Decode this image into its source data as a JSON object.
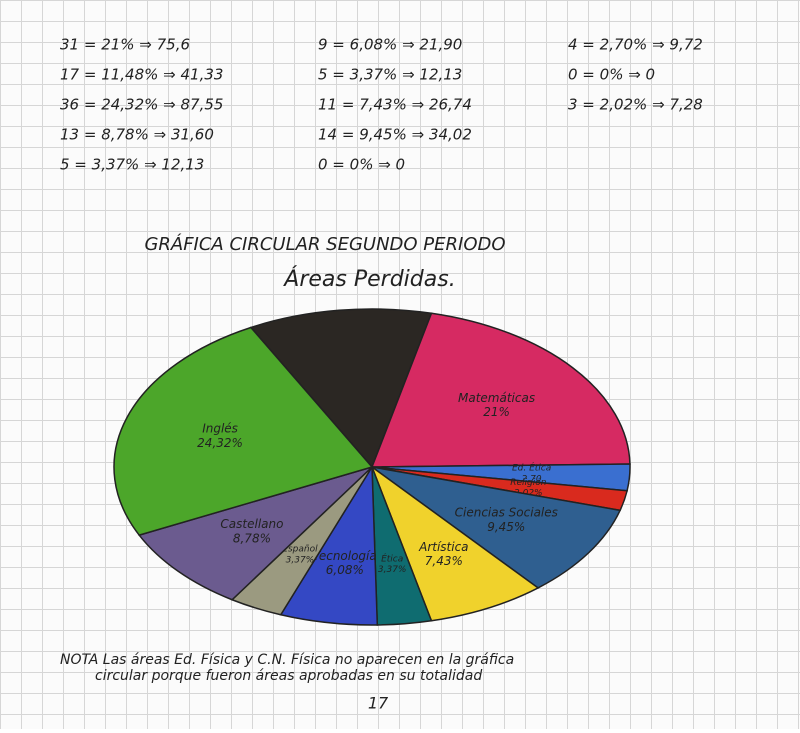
{
  "calculations": [
    [
      "31 = 21% ⇒ 75,6",
      "9 = 6,08% ⇒ 21,90",
      "4 = 2,70% ⇒ 9,72"
    ],
    [
      "17 = 11,48% ⇒ 41,33",
      "5 = 3,37% ⇒ 12,13",
      "0 = 0% ⇒ 0"
    ],
    [
      "36 = 24,32% ⇒ 87,55",
      "11 = 7,43% ⇒ 26,74",
      "3 = 2,02% ⇒ 7,28"
    ],
    [
      "13 = 8,78% ⇒ 31,60",
      "14 = 9,45% ⇒ 34,02"
    ],
    [
      "5 = 3,37% ⇒ 12,13",
      "0 = 0% ⇒ 0"
    ]
  ],
  "chart_data": {
    "type": "pie",
    "title": "GRÁFICA CIRCULAR SEGUNDO PERIODO",
    "subtitle": "Áreas Perdidas.",
    "categories": [
      null,
      "Matemáticas",
      "Ed. Ética",
      "Religión",
      "Ciencias Sociales",
      "Artística",
      "Ética",
      "Tecnología",
      "Español",
      "Castellano",
      "Inglés"
    ],
    "values": [
      11.48,
      21,
      2.7,
      2.02,
      9.45,
      7.43,
      3.37,
      6.08,
      3.37,
      8.78,
      24.32
    ],
    "value_labels": [
      null,
      "21%",
      "2,70",
      "2,02%",
      "9,45%",
      "7,43%",
      "3,37%",
      "6,08%",
      "3,37%",
      "8,78%",
      "24,32%"
    ],
    "colors": [
      "#2b2723",
      "#d62a62",
      "#3a6fd0",
      "#d92a1e",
      "#2f5f90",
      "#f0d22c",
      "#0f6c70",
      "#3448c4",
      "#9b9a80",
      "#6b5b8f",
      "#4ca62a"
    ]
  },
  "note": "NOTA Las áreas Ed. Física y C.N. Física no aparecen en la gráfica circular porque fueron áreas aprobadas en su totalidad",
  "page_number": "17"
}
